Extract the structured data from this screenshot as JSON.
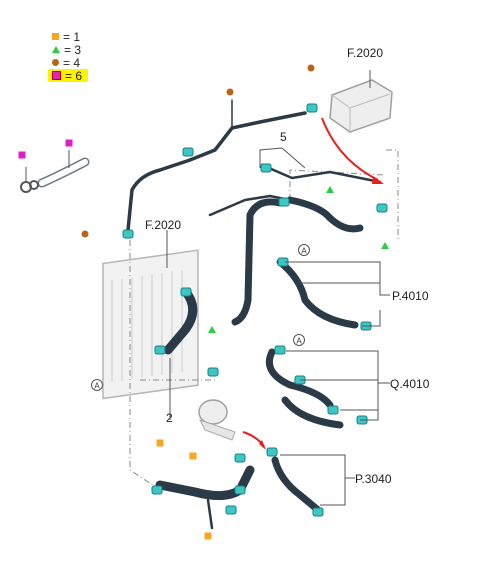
{
  "legend": {
    "items": [
      {
        "symbol": "orange-square",
        "label": "= 1"
      },
      {
        "symbol": "green-triangle",
        "label": "= 3"
      },
      {
        "symbol": "brown-dot",
        "label": "= 4"
      },
      {
        "symbol": "magenta-square",
        "label": "= 6",
        "highlighted": true
      }
    ]
  },
  "labels": {
    "top_ref": "F.2020",
    "left_ref": "F.2020",
    "callout_5": "5",
    "callout_2": "2",
    "p4010": "P.4010",
    "q4010": "Q.4010",
    "p3040": "P.3040",
    "view_a": "A"
  },
  "colors": {
    "hose": "#2b3a47",
    "clamp": "#3cc6c6",
    "leader": "#555555",
    "flow_arrow": "#e8201a",
    "highlight": "#fff200"
  }
}
